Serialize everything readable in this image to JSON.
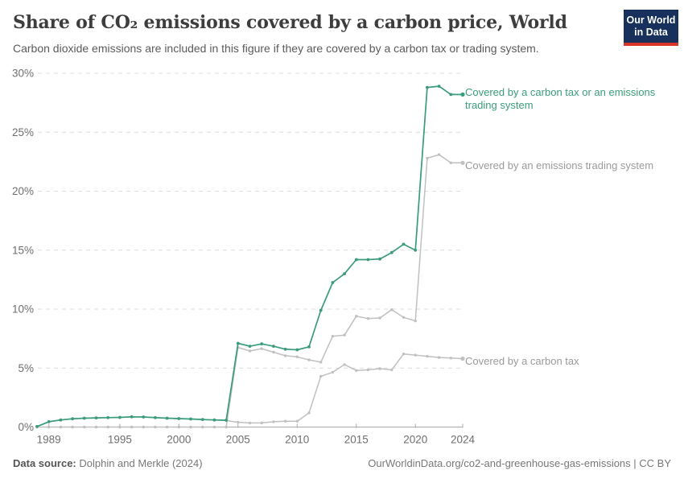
{
  "header": {
    "title": "Share of CO₂ emissions covered by a carbon price, World",
    "subtitle": "Carbon dioxide emissions are included in this figure if they are covered by a carbon tax or trading system.",
    "logo": {
      "line1": "Our World",
      "line2": "in Data"
    }
  },
  "colors": {
    "combined_line": "#3a9c78",
    "gray_line": "#c0c0c0",
    "gray_label": "#9a9a9a",
    "axis_text": "#6e6e6e",
    "grid": "#dcdcdc",
    "axis_line": "#a8a8a8",
    "logo_bg": "#17305c",
    "logo_stripe": "#d8352a"
  },
  "chart_data": {
    "type": "line",
    "title": "Share of CO₂ emissions covered by a carbon price, World",
    "subtitle": "Carbon dioxide emissions are included in this figure if they are covered by a carbon tax or trading system.",
    "xlabel": "",
    "ylabel": "",
    "xlim": [
      1988,
      2024
    ],
    "ylim": [
      0,
      30
    ],
    "x_ticks": [
      1989,
      1995,
      2000,
      2005,
      2010,
      2015,
      2020,
      2024
    ],
    "y_ticks": [
      0,
      5,
      10,
      15,
      20,
      25,
      30
    ],
    "y_tick_suffix": "%",
    "grid": "horizontal-dashed",
    "legend_position": "right-of-line-ends",
    "x": [
      1988,
      1989,
      1990,
      1991,
      1992,
      1993,
      1994,
      1995,
      1996,
      1997,
      1998,
      1999,
      2000,
      2001,
      2002,
      2003,
      2004,
      2005,
      2006,
      2007,
      2008,
      2009,
      2010,
      2011,
      2012,
      2013,
      2014,
      2015,
      2016,
      2017,
      2018,
      2019,
      2020,
      2021,
      2022,
      2023,
      2024
    ],
    "series": [
      {
        "name": "Covered by a carbon tax or an emissions trading system",
        "color": "#3a9c78",
        "values": [
          0.05,
          0.45,
          0.6,
          0.7,
          0.75,
          0.78,
          0.8,
          0.82,
          0.87,
          0.85,
          0.8,
          0.75,
          0.72,
          0.68,
          0.64,
          0.6,
          0.58,
          7.1,
          6.85,
          7.05,
          6.85,
          6.6,
          6.55,
          6.8,
          9.9,
          12.25,
          13.0,
          14.2,
          14.2,
          14.25,
          14.8,
          15.5,
          15.0,
          28.8,
          28.9,
          28.2,
          28.2
        ]
      },
      {
        "name": "Covered by an emissions trading system",
        "color": "#c0c0c0",
        "values": [
          0,
          0,
          0,
          0,
          0,
          0,
          0,
          0,
          0,
          0,
          0,
          0,
          0,
          0,
          0,
          0,
          0,
          6.75,
          6.45,
          6.65,
          6.35,
          6.05,
          5.95,
          5.7,
          5.5,
          7.7,
          7.8,
          9.4,
          9.2,
          9.25,
          9.95,
          9.3,
          9.0,
          22.8,
          23.1,
          22.4,
          22.4
        ]
      },
      {
        "name": "Covered by a carbon tax",
        "color": "#c0c0c0",
        "values": [
          0.05,
          0.45,
          0.6,
          0.7,
          0.75,
          0.78,
          0.8,
          0.82,
          0.87,
          0.85,
          0.8,
          0.75,
          0.72,
          0.68,
          0.64,
          0.6,
          0.55,
          0.4,
          0.35,
          0.35,
          0.45,
          0.5,
          0.5,
          1.2,
          4.3,
          4.65,
          5.3,
          4.8,
          4.85,
          4.95,
          4.85,
          6.2,
          6.1,
          6.0,
          5.9,
          5.85,
          5.8
        ]
      }
    ]
  },
  "footer": {
    "source_label": "Data source:",
    "source_value": " Dolphin and Merkle (2024)",
    "credit": "OurWorldinData.org/co2-and-greenhouse-gas-emissions | CC BY"
  }
}
